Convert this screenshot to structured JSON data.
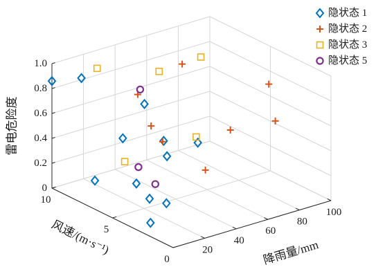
{
  "chart_data": {
    "type": "scatter",
    "view": "3d",
    "title": "",
    "xlabel": "风速/(m·s⁻¹)",
    "ylabel": "降雨量/mm",
    "zlabel": "雷电危险度",
    "xlim": [
      0,
      10
    ],
    "ylim": [
      0,
      100
    ],
    "zlim": [
      0,
      1
    ],
    "xticks": [
      "0",
      "5",
      "10"
    ],
    "yticks": [
      "20",
      "40",
      "60",
      "80",
      "100"
    ],
    "zticks": [
      "0",
      "0.2",
      "0.4",
      "0.6",
      "0.8",
      "1.0"
    ],
    "grid": true,
    "legend_position": "top-right",
    "point_format": [
      "风速",
      "降雨量",
      "雷电危险度"
    ],
    "series": [
      {
        "name": "隐状态 1",
        "marker": "diamond",
        "color": "#0072bd",
        "points": [
          [
            10,
            0,
            0.86
          ],
          [
            9,
            11,
            0.89
          ],
          [
            8.1,
            44,
            0.6
          ],
          [
            7.8,
            28,
            0.4
          ],
          [
            6.9,
            47,
            0.35
          ],
          [
            6.5,
            46,
            0.25
          ],
          [
            6.3,
            64,
            0.3
          ],
          [
            8.8,
            18,
            0.05
          ],
          [
            7.2,
            32,
            0.05
          ],
          [
            5.2,
            25,
            0.05
          ],
          [
            4.2,
            28,
            0.05
          ],
          [
            3.3,
            11,
            0
          ]
        ]
      },
      {
        "name": "隐状态 2",
        "marker": "plus",
        "color": "#d95319",
        "points": [
          [
            7.2,
            61,
            0.9
          ],
          [
            8.0,
            39,
            0.7
          ],
          [
            6.9,
            39,
            0.5
          ],
          [
            6.2,
            41,
            0.4
          ],
          [
            3.7,
            89,
            0.8
          ],
          [
            2.9,
            87,
            0.55
          ],
          [
            2.7,
            57,
            0.6
          ],
          [
            3.2,
            45,
            0.3
          ]
        ]
      },
      {
        "name": "隐状态 3",
        "marker": "square",
        "color": "#edb120",
        "points": [
          [
            6.7,
            69,
            0.95
          ],
          [
            9.4,
            24,
            0.9
          ],
          [
            7.8,
            51,
            0.85
          ],
          [
            6.3,
            63,
            0.35
          ],
          [
            7.9,
            30,
            0.2
          ]
        ]
      },
      {
        "name": "隐状态 5",
        "marker": "circle",
        "color": "#7e2f8e",
        "points": [
          [
            7.8,
            39,
            0.75
          ],
          [
            6.9,
            31,
            0.2
          ],
          [
            5.9,
            34,
            0.1
          ]
        ]
      }
    ]
  }
}
